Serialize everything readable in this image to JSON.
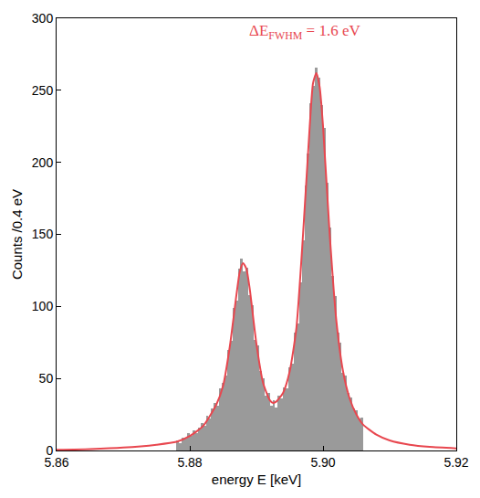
{
  "chart_data": {
    "type": "line",
    "x_label": "energy E [keV]",
    "y_label": "Counts /0.4 eV",
    "annotation": {
      "text": "ΔE",
      "subscript": "FWHM",
      "suffix": " = 1.6 eV",
      "color": "#e8474f"
    },
    "xlim": [
      5.86,
      5.92
    ],
    "xticks": [
      5.86,
      5.88,
      {
        "value": 5.9,
        "label": "5.90"
      },
      5.92
    ],
    "ylim": [
      0,
      300
    ],
    "yticks": [
      0,
      50,
      100,
      150,
      200,
      250,
      300
    ],
    "grid": false,
    "series": [
      {
        "type": "histogram",
        "color": "#9a9a9a",
        "bins": [
          5.878,
          5.8784,
          5.8788,
          5.8792,
          5.8796,
          5.88,
          5.8804,
          5.8808,
          5.8812,
          5.8816,
          5.882,
          5.8824,
          5.8828,
          5.8832,
          5.8836,
          5.884,
          5.8844,
          5.8848,
          5.8852,
          5.8856,
          5.886,
          5.8864,
          5.8868,
          5.8872,
          5.8876,
          5.888,
          5.8884,
          5.8888,
          5.8892,
          5.8896,
          5.89,
          5.8904,
          5.8908,
          5.8912,
          5.8916,
          5.892,
          5.8924,
          5.8928,
          5.8932,
          5.8936,
          5.894,
          5.8944,
          5.8948,
          5.8952,
          5.8956,
          5.896,
          5.8964,
          5.8968,
          5.8972,
          5.8976,
          5.898,
          5.8984,
          5.8988,
          5.8992,
          5.8996,
          5.9,
          5.9004,
          5.9008,
          5.9012,
          5.9016,
          5.902,
          5.9024,
          5.9028,
          5.9032,
          5.9036,
          5.904,
          5.9044,
          5.9048,
          5.9052,
          5.9056,
          5.906
        ],
        "values": [
          7,
          5,
          9,
          8,
          12,
          10,
          14,
          12,
          16,
          19,
          17,
          24,
          22,
          29,
          33,
          31,
          43,
          47,
          52,
          70,
          76,
          99,
          104,
          126,
          133,
          124,
          127,
          108,
          101,
          77,
          73,
          55,
          50,
          38,
          40,
          31,
          35,
          30,
          38,
          36,
          44,
          43,
          58,
          60,
          82,
          88,
          117,
          146,
          184,
          206,
          241,
          253,
          266,
          259,
          240,
          224,
          186,
          155,
          121,
          107,
          82,
          75,
          54,
          52,
          40,
          37,
          29,
          28,
          22,
          23
        ]
      },
      {
        "type": "line",
        "color": "#e8474f",
        "x": [
          5.86,
          5.865,
          5.87,
          5.875,
          5.878,
          5.88,
          5.882,
          5.884,
          5.885,
          5.886,
          5.887,
          5.8875,
          5.888,
          5.8885,
          5.889,
          5.89,
          5.891,
          5.892,
          5.8925,
          5.893,
          5.894,
          5.895,
          5.896,
          5.897,
          5.898,
          5.8985,
          5.899,
          5.8995,
          5.9,
          5.901,
          5.902,
          5.903,
          5.904,
          5.905,
          5.906,
          5.908,
          5.91,
          5.913,
          5.916,
          5.92
        ],
        "values": [
          0.5,
          1,
          2,
          4,
          6,
          10,
          17,
          32,
          45,
          72,
          108,
          124,
          130,
          126,
          112,
          74,
          47,
          35,
          33,
          34,
          40,
          55,
          85,
          150,
          225,
          255,
          262,
          252,
          225,
          150,
          90,
          55,
          36,
          25,
          18,
          11,
          7,
          4,
          2.5,
          1.5
        ]
      }
    ]
  }
}
